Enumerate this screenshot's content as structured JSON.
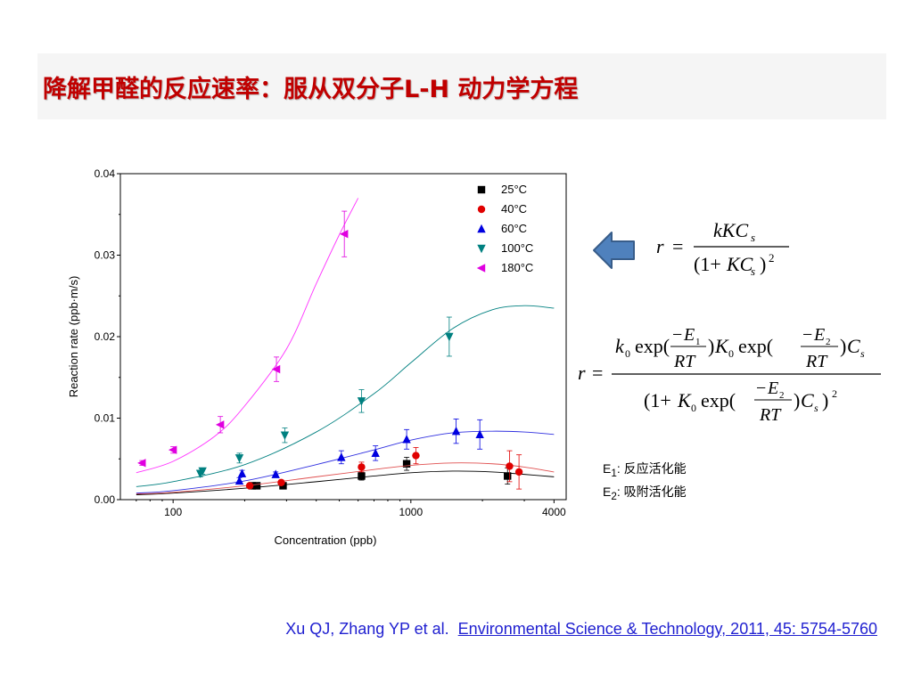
{
  "slide": {
    "title": "降解甲醛的反应速率：服从双分子L-H 动力学方程",
    "citation_authors": "Xu QJ, Zhang YP et al.",
    "citation_link": "Environmental Science & Technology, 2011, 45: 5754-5760",
    "e1_label": "E",
    "e1_sub": "1",
    "e1_desc": ": 反应活化能",
    "e2_label": "E",
    "e2_sub": "2",
    "e2_desc": ": 吸附活化能",
    "arrow_color": "#4f81bd"
  },
  "chart_data": {
    "type": "scatter",
    "xlabel": "Concentration (ppb)",
    "ylabel": "Reaction rate (ppb·m/s)",
    "x_scale": "log",
    "xlim": [
      60,
      4500
    ],
    "ylim": [
      0,
      0.04
    ],
    "x_ticks": [
      100,
      1000,
      4000
    ],
    "x_tick_labels": [
      "100",
      "1000",
      "4000"
    ],
    "y_ticks": [
      0,
      0.01,
      0.02,
      0.03,
      0.04
    ],
    "y_tick_labels": [
      "0.00",
      "0.01",
      "0.02",
      "0.03",
      "0.04"
    ],
    "legend_position": "top-right",
    "series": [
      {
        "name": "25°C",
        "marker": "square",
        "color": "#000000",
        "x": [
          215,
          225,
          290,
          620,
          960,
          2550
        ],
        "y": [
          0.0017,
          0.0017,
          0.0017,
          0.0029,
          0.0044,
          0.0029
        ],
        "err": [
          0.0003,
          0.0003,
          0.0003,
          0.0005,
          0.0008,
          0.001
        ],
        "fit_color": "#000000",
        "fit": [
          [
            70,
            0.0006
          ],
          [
            100,
            0.0008
          ],
          [
            200,
            0.0014
          ],
          [
            400,
            0.0022
          ],
          [
            700,
            0.0029
          ],
          [
            1000,
            0.0033
          ],
          [
            1500,
            0.0035
          ],
          [
            2200,
            0.0034
          ],
          [
            3000,
            0.0031
          ],
          [
            4000,
            0.0028
          ]
        ]
      },
      {
        "name": "40°C",
        "marker": "circle",
        "color": "#e00000",
        "x": [
          210,
          285,
          620,
          1050,
          2600,
          2850
        ],
        "y": [
          0.0017,
          0.0021,
          0.004,
          0.0054,
          0.0041,
          0.0034
        ],
        "err": [
          0.0003,
          0.0003,
          0.0006,
          0.001,
          0.0019,
          0.0021
        ],
        "fit_color": "#e05050",
        "fit": [
          [
            70,
            0.0007
          ],
          [
            100,
            0.0009
          ],
          [
            200,
            0.0017
          ],
          [
            400,
            0.0028
          ],
          [
            700,
            0.0037
          ],
          [
            1000,
            0.0042
          ],
          [
            1500,
            0.0045
          ],
          [
            2200,
            0.0044
          ],
          [
            3000,
            0.004
          ],
          [
            4000,
            0.0034
          ]
        ]
      },
      {
        "name": "60°C",
        "marker": "triangle-up",
        "color": "#0000e0",
        "x": [
          190,
          195,
          270,
          510,
          710,
          960,
          1550,
          1950
        ],
        "y": [
          0.0023,
          0.0032,
          0.0031,
          0.0052,
          0.0057,
          0.0074,
          0.0084,
          0.008
        ],
        "err": [
          0.0004,
          0.0004,
          0.0003,
          0.0008,
          0.0009,
          0.0012,
          0.0015,
          0.0018
        ],
        "fit_color": "#3030e0",
        "fit": [
          [
            70,
            0.0008
          ],
          [
            100,
            0.0011
          ],
          [
            200,
            0.0023
          ],
          [
            400,
            0.0043
          ],
          [
            700,
            0.0061
          ],
          [
            1000,
            0.0073
          ],
          [
            1500,
            0.0082
          ],
          [
            2200,
            0.0084
          ],
          [
            3000,
            0.0083
          ],
          [
            4000,
            0.008
          ]
        ]
      },
      {
        "name": "100°C",
        "marker": "triangle-down",
        "color": "#008080",
        "x": [
          130,
          133,
          190,
          295,
          620,
          1450
        ],
        "y": [
          0.0032,
          0.0035,
          0.0051,
          0.0079,
          0.0121,
          0.02
        ],
        "err": [
          0.0004,
          0.0004,
          0.0006,
          0.0009,
          0.0014,
          0.0024
        ],
        "fit_color": "#008080",
        "fit": [
          [
            70,
            0.0016
          ],
          [
            100,
            0.0022
          ],
          [
            200,
            0.0043
          ],
          [
            400,
            0.0083
          ],
          [
            700,
            0.013
          ],
          [
            1000,
            0.0168
          ],
          [
            1500,
            0.021
          ],
          [
            2200,
            0.0233
          ],
          [
            3000,
            0.0238
          ],
          [
            4000,
            0.0235
          ]
        ]
      },
      {
        "name": "180°C",
        "marker": "triangle-left",
        "color": "#e000e0",
        "x": [
          74,
          100,
          158,
          272,
          525
        ],
        "y": [
          0.0045,
          0.0061,
          0.0092,
          0.016,
          0.0326
        ],
        "err": [
          0.0003,
          0.0004,
          0.001,
          0.0015,
          0.0028
        ],
        "fit_color": "#ff33ff",
        "fit": [
          [
            70,
            0.0033
          ],
          [
            100,
            0.0047
          ],
          [
            150,
            0.0078
          ],
          [
            200,
            0.0115
          ],
          [
            300,
            0.0185
          ],
          [
            400,
            0.0265
          ],
          [
            500,
            0.0325
          ],
          [
            600,
            0.037
          ]
        ]
      }
    ]
  }
}
